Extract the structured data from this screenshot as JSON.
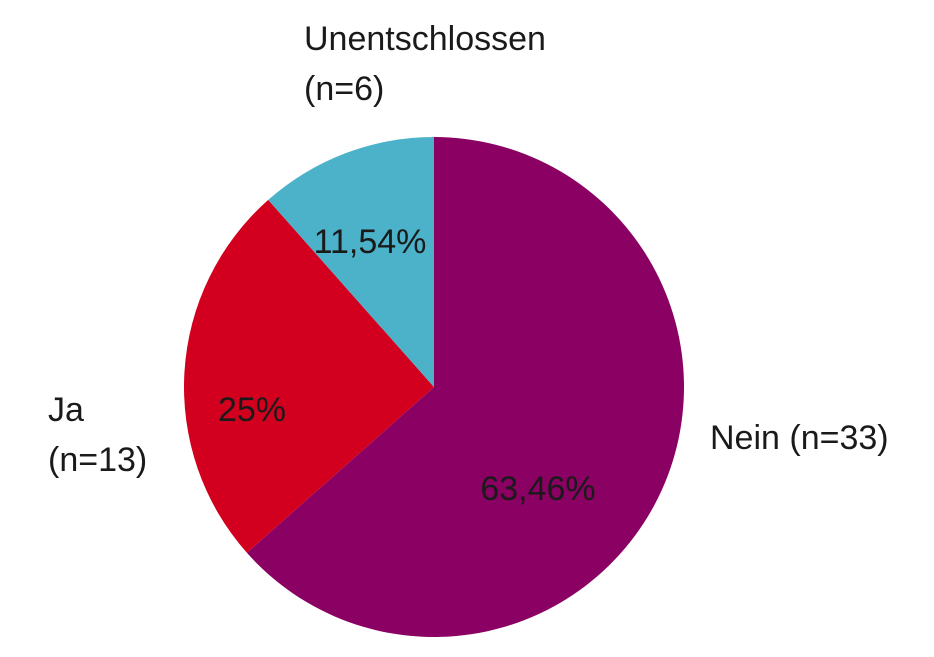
{
  "chart_data": {
    "type": "pie",
    "slices": [
      {
        "category_lines": [
          "Nein (n=33)"
        ],
        "value": 63.46,
        "value_label": "63,46%",
        "color": "#8b0063"
      },
      {
        "category_lines": [
          "Ja",
          "(n=13)"
        ],
        "value": 25,
        "value_label": "25%",
        "color": "#d2001e"
      },
      {
        "category_lines": [
          "Unentschlossen",
          "(n=6)"
        ],
        "value": 11.54,
        "value_label": "11,54%",
        "color": "#4bb2c9"
      }
    ]
  }
}
